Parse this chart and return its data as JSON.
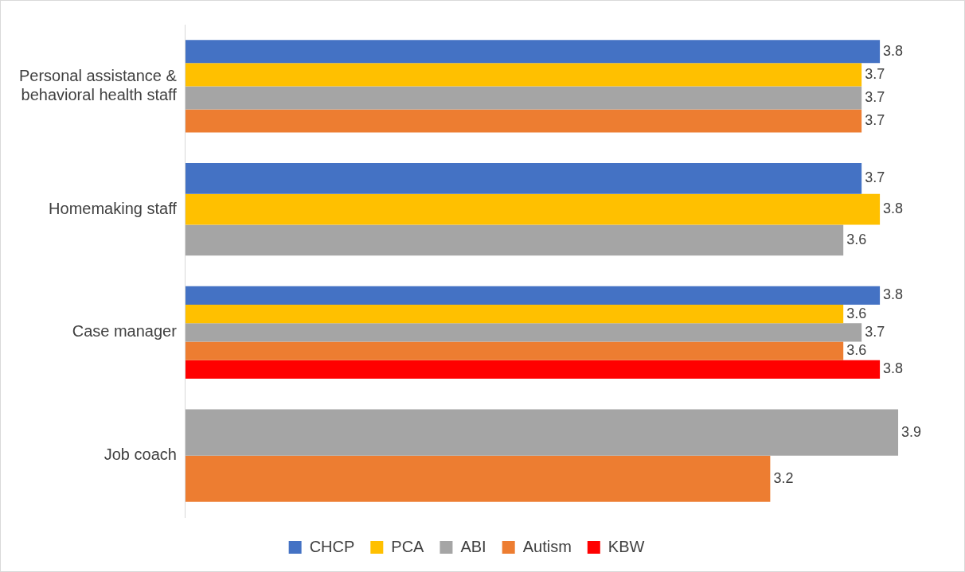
{
  "chart_data": {
    "type": "bar",
    "orientation": "horizontal",
    "categories": [
      "Personal assistance & behavioral health staff",
      "Homemaking staff",
      "Case manager",
      "Job coach"
    ],
    "series": [
      {
        "name": "CHCP",
        "color": "#4472c4",
        "values": [
          3.8,
          3.7,
          3.8,
          null
        ]
      },
      {
        "name": "PCA",
        "color": "#ffc000",
        "values": [
          3.7,
          3.8,
          3.6,
          null
        ]
      },
      {
        "name": "ABI",
        "color": "#a5a5a5",
        "values": [
          3.7,
          3.6,
          3.7,
          3.9
        ]
      },
      {
        "name": "Autism",
        "color": "#ed7d31",
        "values": [
          3.7,
          null,
          3.6,
          3.2
        ]
      },
      {
        "name": "KBW",
        "color": "#ff0000",
        "values": [
          null,
          null,
          3.8,
          null
        ]
      }
    ],
    "tick_labels": "y",
    "legend": "bottom",
    "data_labels": true
  }
}
